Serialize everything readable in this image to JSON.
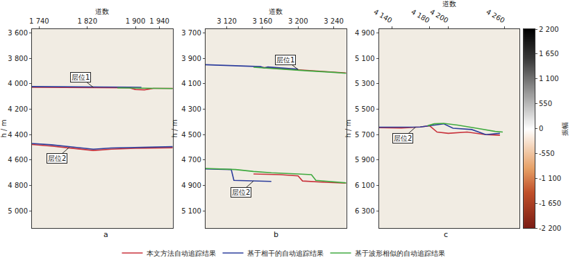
{
  "chart_data": {
    "type": "line",
    "legend": "bottom",
    "grid": false,
    "panels": [
      {
        "label": "a",
        "xlabel": "道数",
        "ylabel": "h / m",
        "xlim": [
          1728,
          1962
        ],
        "xticks": [
          {
            "value": 1740,
            "label": "1 740"
          },
          {
            "value": 1820,
            "label": "1 820"
          },
          {
            "value": 1900,
            "label": "1 900"
          },
          {
            "value": 1940,
            "label": "1 940"
          }
        ],
        "ylim": [
          3570,
          5135
        ],
        "yticks": [
          {
            "value": 3600,
            "label": "3 600"
          },
          {
            "value": 3800,
            "label": "3 800"
          },
          {
            "value": 4000,
            "label": "4 000"
          },
          {
            "value": 4200,
            "label": "4 200"
          },
          {
            "value": 4400,
            "label": "4 400"
          },
          {
            "value": 4600,
            "label": "4 600"
          },
          {
            "value": 4800,
            "label": "4 800"
          },
          {
            "value": 5000,
            "label": "5 000"
          }
        ],
        "annotations": [
          {
            "text": "层位1",
            "x": 1830,
            "y": 4028,
            "position": "above"
          },
          {
            "text": "层位2",
            "x": 1790,
            "y": 4500,
            "position": "below"
          }
        ],
        "series": [
          {
            "name": "本文方法自动追踪结果",
            "color": "#c8303a",
            "x": [
              1728,
              1780,
              1840,
              1890,
              1900,
              1915,
              1930,
              1962,
              null,
              1728,
              1760,
              1800,
              1830,
              1860,
              1900,
              1962
            ],
            "values": [
              4028,
              4028,
              4030,
              4032,
              4045,
              4048,
              4036,
              4036,
              null,
              4478,
              4490,
              4510,
              4525,
              4515,
              4508,
              4503
            ]
          },
          {
            "name": "基于相干的自动追踪结果",
            "color": "#2b3c9c",
            "x": [
              1728,
              1780,
              1840,
              1890,
              1910,
              null,
              1728,
              1760,
              1800,
              1830,
              1860,
              1900,
              1962
            ],
            "values": [
              4022,
              4022,
              4025,
              4027,
              4028,
              null,
              4470,
              4480,
              4500,
              4515,
              4505,
              4500,
              4495
            ]
          },
          {
            "name": "基于波形相似的自动追踪结果",
            "color": "#3faa3f",
            "x": [
              1870,
              1900,
              1930,
              1962
            ],
            "values": [
              4032,
              4034,
              4036,
              4038
            ]
          }
        ]
      },
      {
        "label": "b",
        "xlabel": "道数",
        "ylabel": "h / m",
        "xlim": [
          3096,
          3254
        ],
        "xticks": [
          {
            "value": 3120,
            "label": "3 120"
          },
          {
            "value": 3160,
            "label": "3 160"
          },
          {
            "value": 3200,
            "label": "3 200"
          },
          {
            "value": 3240,
            "label": "3 240"
          }
        ],
        "ylim": [
          3670,
          5235
        ],
        "yticks": [
          {
            "value": 3700,
            "label": "3 700"
          },
          {
            "value": 3900,
            "label": "3 900"
          },
          {
            "value": 4100,
            "label": "4 100"
          },
          {
            "value": 4300,
            "label": "4 300"
          },
          {
            "value": 4500,
            "label": "4 500"
          },
          {
            "value": 4700,
            "label": "4 700"
          },
          {
            "value": 4900,
            "label": "4 900"
          },
          {
            "value": 5100,
            "label": "5 100"
          }
        ],
        "annotations": [
          {
            "text": "层位1",
            "x": 3200,
            "y": 3988,
            "position": "above"
          },
          {
            "text": "层位2",
            "x": 3150,
            "y": 4865,
            "position": "below"
          }
        ],
        "series": [
          {
            "name": "本文方法自动追踪结果",
            "color": "#c8303a",
            "x": [
              3160,
              3200,
              3240,
              3254,
              null,
              3150,
              3180,
              3200,
              3205,
              3230,
              3254
            ],
            "values": [
              3972,
              3990,
              4008,
              4015,
              null,
              4810,
              4815,
              4825,
              4865,
              4875,
              4882
            ]
          },
          {
            "name": "基于相干的自动追踪结果",
            "color": "#2b3c9c",
            "x": [
              3096,
              3130,
              3158,
              3162,
              3166,
              3200,
              null,
              3096,
              3125,
              3128,
              3150,
              3170
            ],
            "values": [
              3950,
              3958,
              3965,
              3975,
              3968,
              3985,
              null,
              4770,
              4775,
              4860,
              4865,
              4868
            ]
          },
          {
            "name": "基于波形相似的自动追踪结果",
            "color": "#3faa3f",
            "x": [
              3150,
              3180,
              3210,
              3240,
              3254,
              null,
              3096,
              3130,
              3150,
              3170,
              3200,
              3215,
              3220,
              3254
            ],
            "values": [
              3970,
              3985,
              3998,
              4010,
              4018,
              null,
              4766,
              4775,
              4790,
              4800,
              4810,
              4815,
              4860,
              4880
            ]
          }
        ]
      },
      {
        "label": "c",
        "xlabel": "道数",
        "ylabel": "h / m",
        "xlim": [
          4126,
          4276
        ],
        "xticks": [
          {
            "value": 4140,
            "label": "4 140"
          },
          {
            "value": 4180,
            "label": "4 180"
          },
          {
            "value": 4200,
            "label": "4 200"
          },
          {
            "value": 4260,
            "label": "4 260"
          }
        ],
        "ylim": [
          4870,
          6435
        ],
        "yticks": [
          {
            "value": 4900,
            "label": "4 900"
          },
          {
            "value": 5100,
            "label": "5 100"
          },
          {
            "value": 5300,
            "label": "5 300"
          },
          {
            "value": 5500,
            "label": "5 500"
          },
          {
            "value": 5700,
            "label": "5 700"
          },
          {
            "value": 5900,
            "label": "5 900"
          },
          {
            "value": 6100,
            "label": "6 100"
          },
          {
            "value": 6300,
            "label": "6 300"
          }
        ],
        "annotations": [
          {
            "text": "层位2",
            "x": 4165,
            "y": 5642,
            "position": "below"
          }
        ],
        "series": [
          {
            "name": "本文方法自动追踪结果",
            "color": "#c8303a",
            "x": [
              4126,
              4150,
              4170,
              4180,
              4188,
              4200,
              4220,
              4240,
              4255
            ],
            "values": [
              5645,
              5648,
              5640,
              5630,
              5680,
              5690,
              5680,
              5700,
              5705
            ]
          },
          {
            "name": "基于相干的自动追踪结果",
            "color": "#2b3c9c",
            "x": [
              4126,
              4170,
              4185,
              4195,
              4205,
              4225,
              4240,
              4255
            ],
            "values": [
              5642,
              5640,
              5625,
              5615,
              5650,
              5660,
              5700,
              5690
            ]
          },
          {
            "name": "基于波形相似的自动追踪结果",
            "color": "#3faa3f",
            "x": [
              4178,
              4185,
              4195,
              4210,
              4230,
              4250,
              4258
            ],
            "values": [
              5630,
              5615,
              5612,
              5625,
              5650,
              5675,
              5680
            ]
          }
        ]
      }
    ],
    "colorbar": {
      "title": "振幅",
      "clim": [
        -2200,
        2200
      ],
      "ticks": [
        {
          "value": -2200,
          "label": "-2 200"
        },
        {
          "value": -1650,
          "label": "-1 650"
        },
        {
          "value": -1100,
          "label": "-1 100"
        },
        -550,
        0,
        550,
        {
          "value": 1100,
          "label": "1 100"
        },
        {
          "value": 1650,
          "label": "1 650"
        },
        {
          "value": 2200,
          "label": "2 200"
        }
      ]
    }
  }
}
